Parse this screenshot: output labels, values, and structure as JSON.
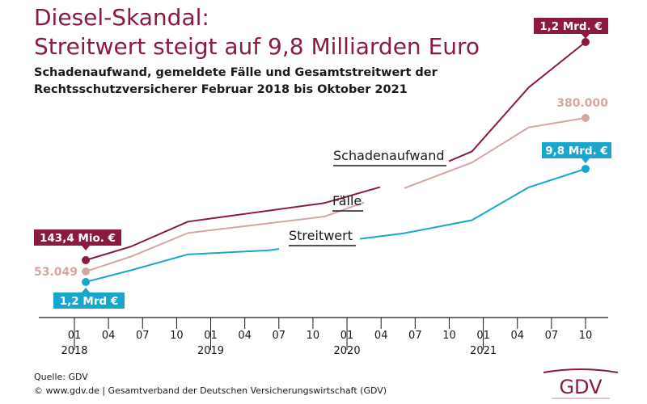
{
  "title_line1": "Diesel-Skandal:",
  "title_line2": "Streitwert steigt auf 9,8 Milliarden Euro",
  "subtitle_line1": "Schadenaufwand, gemeldete Fälle und Gesamtstreitwert der",
  "subtitle_line2": "Rechtsschutzversicherer Februar 2018 bis Oktober 2021",
  "footer_source": "Quelle: GDV",
  "footer_copyright": "© www.gdv.de | Gesamtverband der Deutschen Versicherungswirtschaft (GDV)",
  "logo_text": "GDV",
  "chart_data": {
    "type": "line",
    "x_ticks": [
      {
        "date": "2018-01",
        "label": "01",
        "year": "2018"
      },
      {
        "date": "2018-04",
        "label": "04"
      },
      {
        "date": "2018-07",
        "label": "07"
      },
      {
        "date": "2018-10",
        "label": "10"
      },
      {
        "date": "2019-01",
        "label": "01",
        "year": "2019"
      },
      {
        "date": "2019-04",
        "label": "04"
      },
      {
        "date": "2019-07",
        "label": "07"
      },
      {
        "date": "2019-10",
        "label": "10"
      },
      {
        "date": "2020-01",
        "label": "01",
        "year": "2020"
      },
      {
        "date": "2020-04",
        "label": "04"
      },
      {
        "date": "2020-07",
        "label": "07"
      },
      {
        "date": "2020-10",
        "label": "10"
      },
      {
        "date": "2021-01",
        "label": "01",
        "year": "2021"
      },
      {
        "date": "2021-04",
        "label": "04"
      },
      {
        "date": "2021-07",
        "label": "07"
      },
      {
        "date": "2021-10",
        "label": "10"
      }
    ],
    "series": [
      {
        "name": "Schadenaufwand",
        "color": "#8b1a40",
        "points": [
          [
            "2018-02",
            0.1434
          ],
          [
            "2018-06",
            0.21
          ],
          [
            "2018-11",
            0.33
          ],
          [
            "2019-11",
            0.42
          ],
          [
            "2020-06",
            0.53
          ],
          [
            "2020-12",
            0.67
          ],
          [
            "2021-05",
            0.98
          ],
          [
            "2021-10",
            1.2
          ]
        ],
        "start_label": "143,4 Mio. €",
        "end_label": "1,2 Mrd. €"
      },
      {
        "name": "Fälle",
        "color": "#d4a6a2",
        "points": [
          [
            "2018-02",
            53049
          ],
          [
            "2018-06",
            85000
          ],
          [
            "2018-11",
            135000
          ],
          [
            "2019-11",
            170000
          ],
          [
            "2020-06",
            230000
          ],
          [
            "2020-12",
            285000
          ],
          [
            "2021-05",
            360000
          ],
          [
            "2021-10",
            380000
          ]
        ],
        "start_label": "53.049",
        "end_label": "380.000"
      },
      {
        "name": "Streitwert",
        "color": "#18a6cc",
        "points": [
          [
            "2018-02",
            1.2
          ],
          [
            "2018-06",
            2.1
          ],
          [
            "2018-11",
            3.3
          ],
          [
            "2019-06",
            3.6
          ],
          [
            "2020-06",
            4.9
          ],
          [
            "2020-12",
            5.9
          ],
          [
            "2021-05",
            8.4
          ],
          [
            "2021-10",
            9.8
          ]
        ],
        "start_label": "1,2 Mrd €",
        "end_label": "9,8 Mrd. €"
      }
    ]
  }
}
